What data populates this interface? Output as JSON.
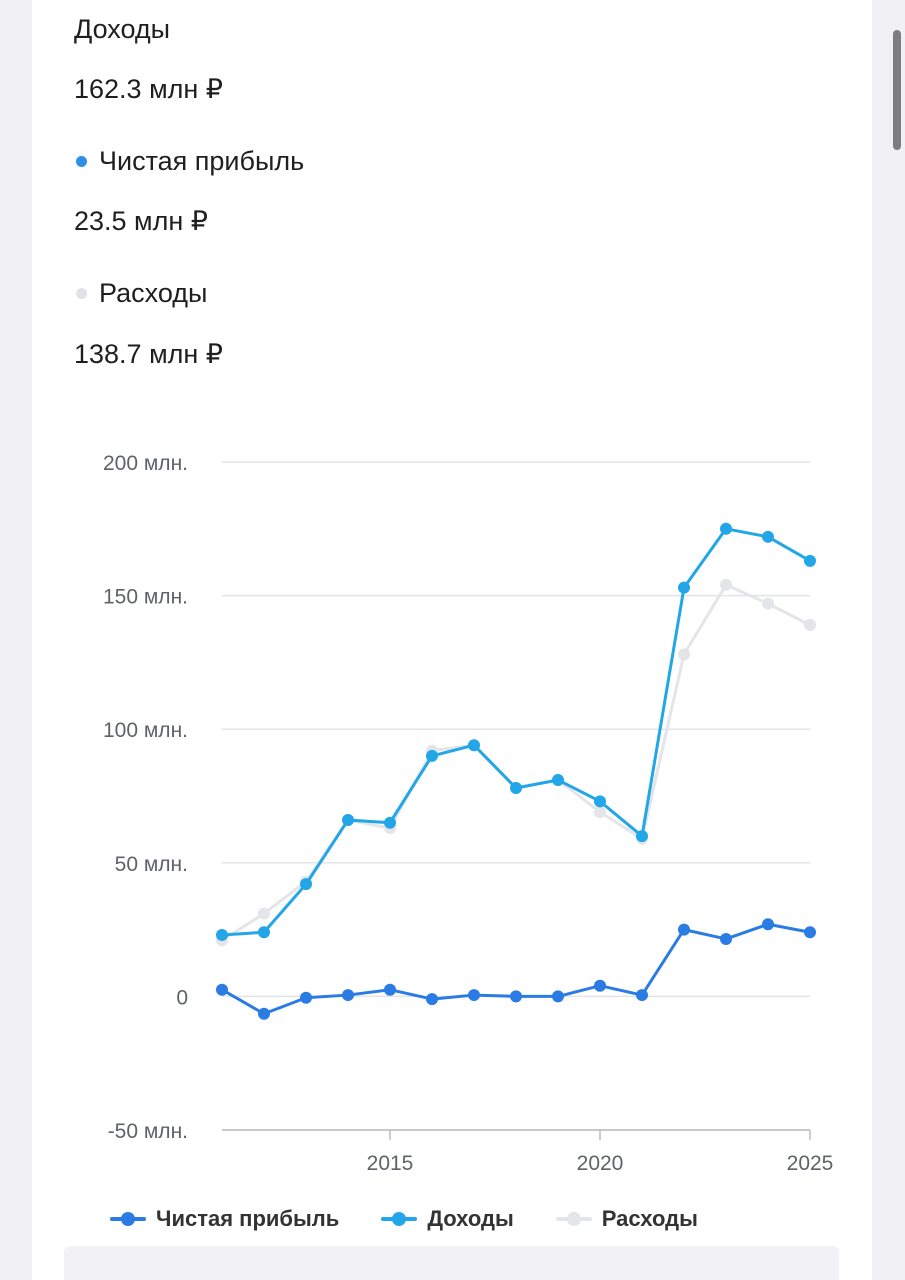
{
  "stats": {
    "income_label": "Доходы",
    "income_value": "162.3 млн ₽",
    "profit_label": "Чистая прибыль",
    "profit_value": "23.5 млн ₽",
    "expenses_label": "Расходы",
    "expenses_value": "138.7 млн ₽"
  },
  "colors": {
    "profit": "#2b7be4",
    "income": "#22a6e8",
    "expenses": "#e3e5e9",
    "grid": "#e2e4e8",
    "axis_text": "#5f6368"
  },
  "chart_data": {
    "type": "line",
    "x": [
      2011,
      2012,
      2013,
      2014,
      2015,
      2016,
      2017,
      2018,
      2019,
      2020,
      2021,
      2022,
      2023,
      2024,
      2025
    ],
    "series": [
      {
        "name": "Чистая прибыль",
        "values": [
          2.5,
          -6.5,
          -0.5,
          0.5,
          2.5,
          -1,
          0.5,
          0,
          0,
          4,
          0.5,
          25,
          21.5,
          27,
          24
        ]
      },
      {
        "name": "Доходы",
        "values": [
          23,
          24,
          42,
          66,
          65,
          90,
          94,
          78,
          81,
          73,
          60,
          153,
          175,
          172,
          163
        ]
      },
      {
        "name": "Расходы",
        "values": [
          21,
          31,
          43,
          66,
          63,
          92,
          94,
          78,
          81,
          69,
          59,
          128,
          154,
          147,
          139
        ]
      }
    ],
    "y_ticks": [
      "200 млн.",
      "150 млн.",
      "100 млн.",
      "50 млн.",
      "0",
      "-50 млн."
    ],
    "y_tick_values": [
      200,
      150,
      100,
      50,
      0,
      -50
    ],
    "x_ticks": [
      "2015",
      "2020",
      "2025"
    ],
    "x_tick_values": [
      2015,
      2020,
      2025
    ],
    "ylim": [
      -50,
      200
    ],
    "xlim": [
      2011,
      2025
    ],
    "grid": true,
    "legend": "bottom"
  }
}
